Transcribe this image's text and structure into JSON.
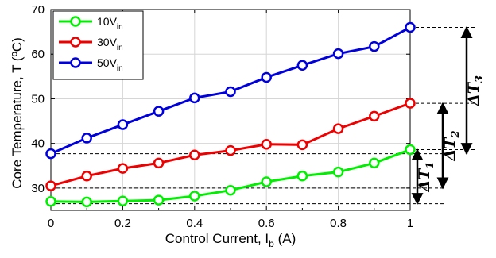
{
  "chart_data": {
    "type": "line",
    "xlabel": "Control Current, I",
    "xlabel_sub": "b",
    "xlabel_unit": " (A)",
    "ylabel": "Core Temperature, T (ºC)",
    "xlim": [
      0,
      1
    ],
    "ylim": [
      25,
      70
    ],
    "xticks": [
      0,
      0.2,
      0.4,
      0.6,
      0.8,
      1
    ],
    "xtick_labels": [
      "0",
      "0.2",
      "0.4",
      "0.6",
      "0.8",
      "1"
    ],
    "yticks": [
      30,
      40,
      50,
      60,
      70
    ],
    "ytick_labels": [
      "30",
      "40",
      "50",
      "60",
      "70"
    ],
    "grid": true,
    "legend_position": "top-left",
    "x": [
      0,
      0.1,
      0.2,
      0.3,
      0.4,
      0.5,
      0.6,
      0.7,
      0.8,
      0.9,
      1.0
    ],
    "series": [
      {
        "name": "10V",
        "name_sub": "in",
        "color": "#00ee00",
        "values": [
          27.0,
          26.9,
          27.1,
          27.3,
          28.2,
          29.5,
          31.4,
          32.7,
          33.6,
          35.6,
          38.6
        ]
      },
      {
        "name": "30V",
        "name_sub": "in",
        "color": "#ee0000",
        "values": [
          30.5,
          32.7,
          34.4,
          35.6,
          37.4,
          38.4,
          39.8,
          39.7,
          43.3,
          46.1,
          49.0
        ]
      },
      {
        "name": "50V",
        "name_sub": "in",
        "color": "#0000dd",
        "values": [
          37.7,
          41.2,
          44.2,
          47.2,
          50.2,
          51.6,
          54.8,
          57.5,
          60.1,
          61.7,
          66.0
        ]
      }
    ],
    "reference_lines": [
      {
        "label": "50V_min",
        "y": 37.7
      },
      {
        "label": "30V_min",
        "y": 30.0
      },
      {
        "label": "10V_min",
        "y": 26.5
      },
      {
        "label": "10V_max",
        "y": 38.6
      },
      {
        "label": "30V_max",
        "y": 49.0
      },
      {
        "label": "50V_max",
        "y": 66.0
      }
    ],
    "annotations": [
      {
        "label": "ΔT",
        "sub": "1",
        "from": 26.5,
        "to": 38.6
      },
      {
        "label": "ΔT",
        "sub": "2",
        "from": 30.0,
        "to": 49.0
      },
      {
        "label": "ΔT",
        "sub": "3",
        "from": 37.7,
        "to": 66.0
      }
    ]
  }
}
